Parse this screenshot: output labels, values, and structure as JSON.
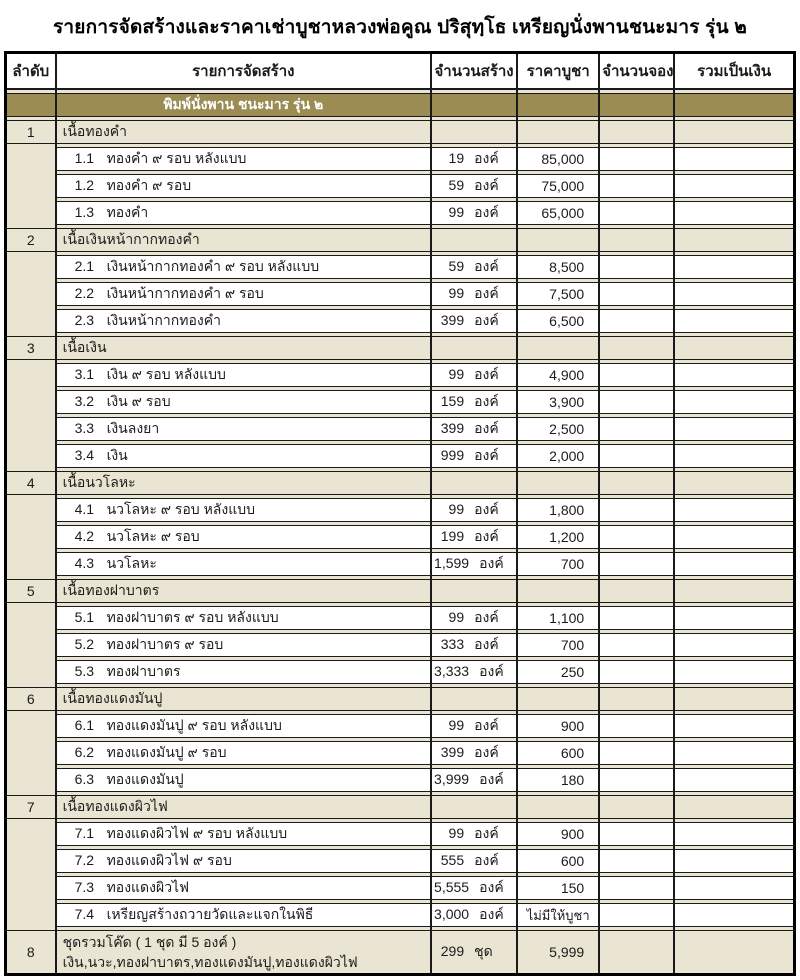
{
  "title": "รายการจัดสร้างและราคาเช่าบูชาหลวงพ่อคูณ ปริสุทฺโธ  เหรียญนั่งพานชนะมาร รุ่น ๒",
  "colors": {
    "beige": "#e9e5d2",
    "olive": "#9a8c52",
    "line": "#1a1a1a"
  },
  "table": {
    "columns": [
      "ลำดับ",
      "รายการจัดสร้าง",
      "จำนวนสร้าง",
      "ราคาบูชา",
      "จำนวนจอง",
      "รวมเป็นเงิน"
    ],
    "subheader": "พิมพ์นั่งพาน ชนะมาร รุ่น ๒",
    "sections": [
      {
        "no": "1",
        "name": "เนื้อทองคำ",
        "items": [
          {
            "no": "1.1",
            "desc": "ทองคำ ๙ รอบ หลังแบบ",
            "qty": "19",
            "unit": "องค์",
            "price": "85,000"
          },
          {
            "no": "1.2",
            "desc": "ทองคำ ๙ รอบ",
            "qty": "59",
            "unit": "องค์",
            "price": "75,000"
          },
          {
            "no": "1.3",
            "desc": "ทองคำ",
            "qty": "99",
            "unit": "องค์",
            "price": "65,000"
          }
        ]
      },
      {
        "no": "2",
        "name": "เนื้อเงินหน้ากากทองคำ",
        "items": [
          {
            "no": "2.1",
            "desc": "เงินหน้ากากทองคำ ๙ รอบ หลังแบบ",
            "qty": "59",
            "unit": "องค์",
            "price": "8,500"
          },
          {
            "no": "2.2",
            "desc": "เงินหน้ากากทองคำ ๙ รอบ",
            "qty": "99",
            "unit": "องค์",
            "price": "7,500"
          },
          {
            "no": "2.3",
            "desc": "เงินหน้ากากทองคำ",
            "qty": "399",
            "unit": "องค์",
            "price": "6,500"
          }
        ]
      },
      {
        "no": "3",
        "name": "เนื้อเงิน",
        "items": [
          {
            "no": "3.1",
            "desc": "เงิน ๙ รอบ หลังแบบ",
            "qty": "99",
            "unit": "องค์",
            "price": "4,900"
          },
          {
            "no": "3.2",
            "desc": "เงิน ๙ รอบ",
            "qty": "159",
            "unit": "องค์",
            "price": "3,900"
          },
          {
            "no": "3.3",
            "desc": "เงินลงยา",
            "qty": "399",
            "unit": "องค์",
            "price": "2,500"
          },
          {
            "no": "3.4",
            "desc": "เงิน",
            "qty": "999",
            "unit": "องค์",
            "price": "2,000"
          }
        ]
      },
      {
        "no": "4",
        "name": "เนื้อนวโลหะ",
        "items": [
          {
            "no": "4.1",
            "desc": "นวโลหะ ๙ รอบ หลังแบบ",
            "qty": "99",
            "unit": "องค์",
            "price": "1,800"
          },
          {
            "no": "4.2",
            "desc": "นวโลหะ ๙ รอบ",
            "qty": "199",
            "unit": "องค์",
            "price": "1,200"
          },
          {
            "no": "4.3",
            "desc": "นวโลหะ",
            "qty": "1,599",
            "unit": "องค์",
            "price": "700"
          }
        ]
      },
      {
        "no": "5",
        "name": "เนื้อทองฝาบาตร",
        "items": [
          {
            "no": "5.1",
            "desc": "ทองฝาบาตร ๙ รอบ หลังแบบ",
            "qty": "99",
            "unit": "องค์",
            "price": "1,100"
          },
          {
            "no": "5.2",
            "desc": "ทองฝาบาตร ๙ รอบ",
            "qty": "333",
            "unit": "องค์",
            "price": "700"
          },
          {
            "no": "5.3",
            "desc": "ทองฝาบาตร",
            "qty": "3,333",
            "unit": "องค์",
            "price": "250"
          }
        ]
      },
      {
        "no": "6",
        "name": "เนื้อทองแดงมันปู",
        "items": [
          {
            "no": "6.1",
            "desc": "ทองแดงมันปู ๙ รอบ หลังแบบ",
            "qty": "99",
            "unit": "องค์",
            "price": "900"
          },
          {
            "no": "6.2",
            "desc": "ทองแดงมันปู ๙ รอบ",
            "qty": "399",
            "unit": "องค์",
            "price": "600"
          },
          {
            "no": "6.3",
            "desc": "ทองแดงมันปู",
            "qty": "3,999",
            "unit": "องค์",
            "price": "180"
          }
        ]
      },
      {
        "no": "7",
        "name": "เนื้อทองแดงผิวไฟ",
        "items": [
          {
            "no": "7.1",
            "desc": "ทองแดงผิวไฟ ๙ รอบ หลังแบบ",
            "qty": "99",
            "unit": "องค์",
            "price": "900"
          },
          {
            "no": "7.2",
            "desc": "ทองแดงผิวไฟ ๙ รอบ",
            "qty": "555",
            "unit": "องค์",
            "price": "600"
          },
          {
            "no": "7.3",
            "desc": "ทองแดงผิวไฟ",
            "qty": "5,555",
            "unit": "องค์",
            "price": "150"
          },
          {
            "no": "7.4",
            "desc": "เหรียญสร้างถวายวัดและแจกในพิธี",
            "qty": "3,000",
            "unit": "องค์",
            "price": "ไม่มีให้บูชา"
          }
        ]
      }
    ],
    "set_row": {
      "no": "8",
      "line1": "ชุดรวมโค๊ด ( 1 ชุด มี 5 องค์ )",
      "line2": "เงิน,นวะ,ทองฝาบาตร,ทองแดงมันปู,ทองแดงผิวไฟ",
      "qty": "299",
      "unit": "ชุด",
      "price": "5,999"
    }
  }
}
